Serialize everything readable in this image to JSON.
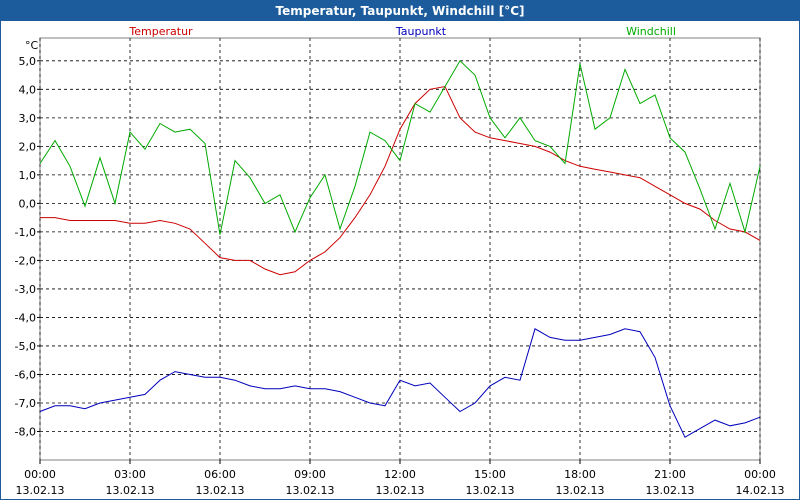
{
  "chart_data": {
    "type": "line",
    "title": "Temperatur, Taupunkt, Windchill [°C]",
    "y_label": "°C",
    "x": [
      0,
      0.5,
      1,
      1.5,
      2,
      2.5,
      3,
      3.5,
      4,
      4.5,
      5,
      5.5,
      6,
      6.5,
      7,
      7.5,
      8,
      8.5,
      9,
      9.5,
      10,
      10.5,
      11,
      11.5,
      12,
      12.5,
      13,
      13.5,
      14,
      14.5,
      15,
      15.5,
      16,
      16.5,
      17,
      17.5,
      18,
      18.5,
      19,
      19.5,
      20,
      20.5,
      21,
      21.5,
      22,
      22.5,
      23,
      23.5,
      24
    ],
    "series": [
      {
        "name": "Temperatur",
        "color": "#cc0000",
        "values": [
          -0.5,
          -0.5,
          -0.6,
          -0.6,
          -0.6,
          -0.6,
          -0.7,
          -0.7,
          -0.6,
          -0.7,
          -0.9,
          -1.4,
          -1.9,
          -2.0,
          -2.0,
          -2.3,
          -2.5,
          -2.4,
          -2.0,
          -1.7,
          -1.2,
          -0.5,
          0.3,
          1.3,
          2.6,
          3.5,
          4.0,
          4.1,
          3.0,
          2.5,
          2.3,
          2.2,
          2.1,
          2.0,
          1.8,
          1.5,
          1.3,
          1.2,
          1.1,
          1.0,
          0.9,
          0.6,
          0.3,
          0.0,
          -0.2,
          -0.6,
          -0.9,
          -1.0,
          -1.3
        ]
      },
      {
        "name": "Taupunkt",
        "color": "#0000bb",
        "values": [
          -7.3,
          -7.1,
          -7.1,
          -7.2,
          -7.0,
          -6.9,
          -6.8,
          -6.7,
          -6.2,
          -5.9,
          -6.0,
          -6.1,
          -6.1,
          -6.2,
          -6.4,
          -6.5,
          -6.5,
          -6.4,
          -6.5,
          -6.5,
          -6.6,
          -6.8,
          -7.0,
          -7.1,
          -6.2,
          -6.4,
          -6.3,
          -6.8,
          -7.3,
          -7.0,
          -6.4,
          -6.1,
          -6.2,
          -4.4,
          -4.7,
          -4.8,
          -4.8,
          -4.7,
          -4.6,
          -4.4,
          -4.5,
          -5.4,
          -7.1,
          -8.2,
          -7.9,
          -7.6,
          -7.8,
          -7.7,
          -7.5
        ]
      },
      {
        "name": "Windchill",
        "color": "#00aa00",
        "values": [
          1.4,
          2.2,
          1.3,
          -0.1,
          1.6,
          0.0,
          2.5,
          1.9,
          2.8,
          2.5,
          2.6,
          2.1,
          -1.1,
          1.5,
          0.9,
          0.0,
          0.3,
          -1.0,
          0.2,
          1.0,
          -0.9,
          0.6,
          2.5,
          2.2,
          1.5,
          3.5,
          3.2,
          4.1,
          5.0,
          4.5,
          3.0,
          2.3,
          3.0,
          2.2,
          2.0,
          1.4,
          4.9,
          2.6,
          3.0,
          4.7,
          3.5,
          3.8,
          2.3,
          1.8,
          0.5,
          -0.9,
          0.7,
          -1.0,
          1.3
        ]
      }
    ],
    "xlim": [
      0,
      24
    ],
    "xticks": [
      {
        "value": 0,
        "label": "00:00"
      },
      {
        "value": 3,
        "label": "03:00"
      },
      {
        "value": 6,
        "label": "06:00"
      },
      {
        "value": 9,
        "label": "09:00"
      },
      {
        "value": 12,
        "label": "12:00"
      },
      {
        "value": 15,
        "label": "15:00"
      },
      {
        "value": 18,
        "label": "18:00"
      },
      {
        "value": 21,
        "label": "21:00"
      },
      {
        "value": 24,
        "label": "00:00"
      }
    ],
    "xtick_dates": [
      "13.02.13",
      "13.02.13",
      "13.02.13",
      "13.02.13",
      "13.02.13",
      "13.02.13",
      "13.02.13",
      "13.02.13",
      "14.02.13"
    ],
    "ylim": [
      -9,
      5.8
    ],
    "yticks": [
      {
        "value": 5,
        "label": "5,0"
      },
      {
        "value": 4,
        "label": "4,0"
      },
      {
        "value": 3,
        "label": "3,0"
      },
      {
        "value": 2,
        "label": "2,0"
      },
      {
        "value": 1,
        "label": "1,0"
      },
      {
        "value": 0,
        "label": "0,0"
      },
      {
        "value": -1,
        "label": "-1,0"
      },
      {
        "value": -2,
        "label": "-2,0"
      },
      {
        "value": -3,
        "label": "-3,0"
      },
      {
        "value": -4,
        "label": "-4,0"
      },
      {
        "value": -5,
        "label": "-5,0"
      },
      {
        "value": -6,
        "label": "-6,0"
      },
      {
        "value": -7,
        "label": "-7,0"
      },
      {
        "value": -8,
        "label": "-8,0"
      }
    ],
    "grid": true
  }
}
